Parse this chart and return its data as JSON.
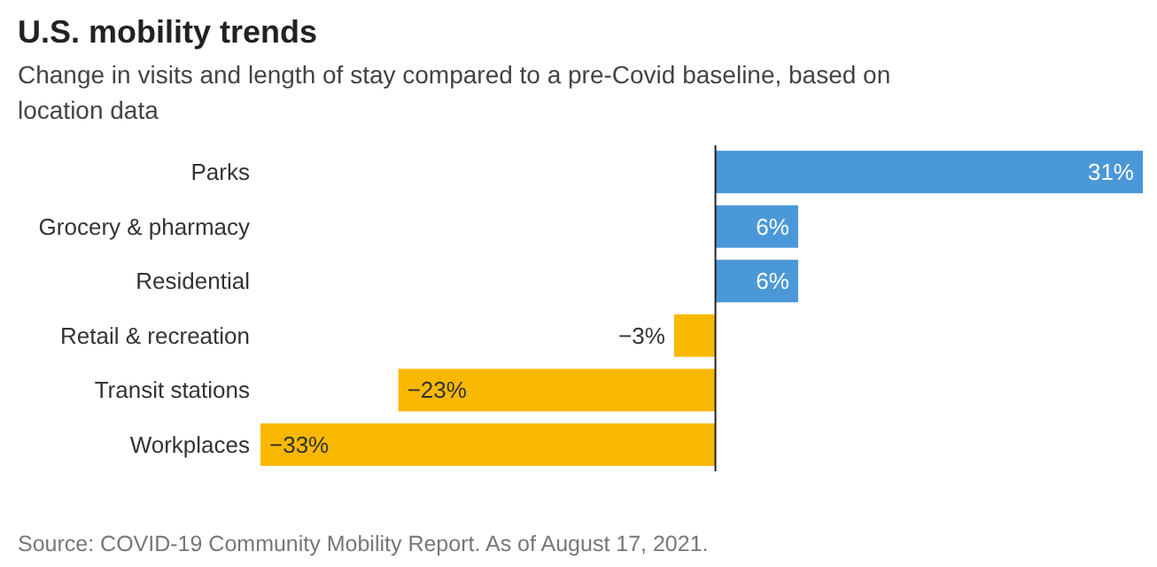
{
  "chart_data": {
    "type": "bar",
    "orientation": "horizontal",
    "title": "U.S. mobility trends",
    "subtitle": "Change in visits and length of stay compared to a pre-Covid baseline, based on location data",
    "categories": [
      "Parks",
      "Grocery & pharmacy",
      "Residential",
      "Retail & recreation",
      "Transit stations",
      "Workplaces"
    ],
    "values": [
      31,
      6,
      6,
      -3,
      -23,
      -33
    ],
    "colors": [
      "#4a98d8",
      "#4a98d8",
      "#4a98d8",
      "#f9b800",
      "#f9b800",
      "#f9b800"
    ],
    "value_labels": [
      "31%",
      "6%",
      "6%",
      "−3%",
      "−23%",
      "−33%"
    ],
    "xlim": [
      -33,
      31
    ],
    "ref_lines": [
      {
        "axis": "x",
        "value": 0,
        "color": "#222222"
      }
    ],
    "annotations": [
      "Source: COVID-19 Community Mobility Report. As of August 17, 2021."
    ]
  }
}
